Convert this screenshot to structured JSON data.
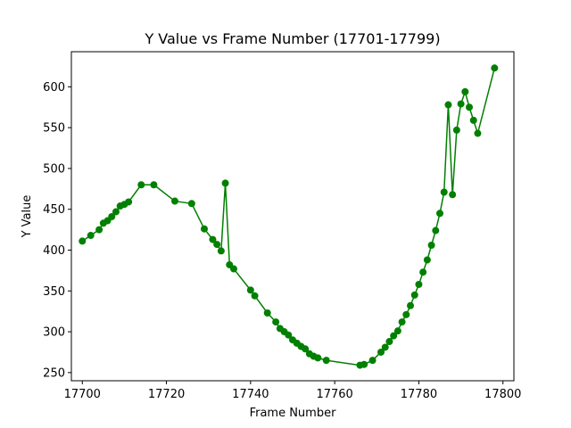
{
  "chart_data": {
    "type": "line",
    "title": "Y Value vs Frame Number (17701-17799)",
    "xlabel": "Frame Number",
    "ylabel": "Y Value",
    "xlim": [
      17697.4,
      17802.6
    ],
    "ylim": [
      240,
      643
    ],
    "xticks": [
      17700,
      17720,
      17740,
      17760,
      17780,
      17800
    ],
    "yticks": [
      250,
      300,
      350,
      400,
      450,
      500,
      550,
      600
    ],
    "grid": false,
    "legend": "none",
    "series": [
      {
        "color": "#008000",
        "marker": "circle",
        "x": [
          17700,
          17702,
          17704,
          17705,
          17706,
          17707,
          17708,
          17709,
          17710,
          17711,
          17714,
          17717,
          17722,
          17726,
          17729,
          17731,
          17732,
          17733,
          17734,
          17735,
          17736,
          17740,
          17741,
          17744,
          17746,
          17747,
          17748,
          17749,
          17750,
          17751,
          17752,
          17753,
          17754,
          17755,
          17756,
          17758,
          17766,
          17767,
          17769,
          17771,
          17772,
          17773,
          17774,
          17775,
          17776,
          17777,
          17778,
          17779,
          17780,
          17781,
          17782,
          17783,
          17784,
          17785,
          17786,
          17787,
          17788,
          17789,
          17790,
          17791,
          17792,
          17793,
          17794,
          17798
        ],
        "y": [
          411,
          418,
          425,
          433,
          436,
          441,
          447,
          454,
          456,
          459,
          480,
          480,
          460,
          457,
          426,
          413,
          407,
          399,
          482,
          382,
          377,
          351,
          344,
          323,
          312,
          304,
          300,
          296,
          290,
          286,
          282,
          279,
          273,
          270,
          268,
          265,
          259,
          260,
          265,
          275,
          281,
          288,
          295,
          301,
          312,
          321,
          332,
          345,
          358,
          373,
          388,
          406,
          424,
          445,
          471,
          578,
          468,
          547,
          579,
          594,
          575,
          559,
          543,
          623
        ]
      }
    ]
  }
}
